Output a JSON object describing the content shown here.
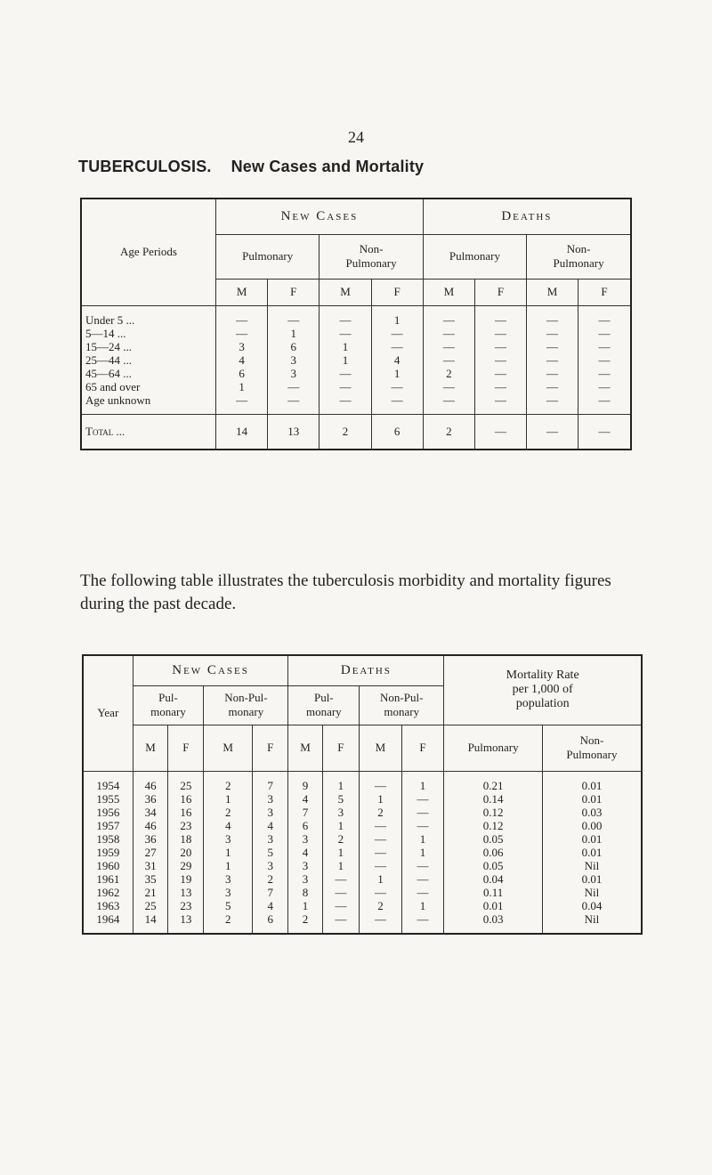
{
  "page_number": "24",
  "title": "TUBERCULOSIS.",
  "subtitle": "New Cases and Mortality",
  "table1": {
    "header": {
      "age_periods": "Age Periods",
      "new_cases": "New Cases",
      "deaths": "Deaths",
      "groups": [
        "Pulmonary",
        "Non-\nPulmonary",
        "Pulmonary",
        "Non-\nPulmonary"
      ],
      "sex": [
        "M",
        "F",
        "M",
        "F",
        "M",
        "F",
        "M",
        "F"
      ]
    },
    "rows": [
      [
        "Under 5 ...",
        "—",
        "—",
        "—",
        "1",
        "—",
        "—",
        "—",
        "—"
      ],
      [
        "5—14 ...",
        "—",
        "1",
        "—",
        "—",
        "—",
        "—",
        "—",
        "—"
      ],
      [
        "15—24 ...",
        "3",
        "6",
        "1",
        "—",
        "—",
        "—",
        "—",
        "—"
      ],
      [
        "25—44 ...",
        "4",
        "3",
        "1",
        "4",
        "—",
        "—",
        "—",
        "—"
      ],
      [
        "45—64 ...",
        "6",
        "3",
        "—",
        "1",
        "2",
        "—",
        "—",
        "—"
      ],
      [
        "65 and over",
        "1",
        "—",
        "—",
        "—",
        "—",
        "—",
        "—",
        "—"
      ],
      [
        "Age unknown",
        "—",
        "—",
        "—",
        "—",
        "—",
        "—",
        "—",
        "—"
      ]
    ],
    "total": [
      "Total ...",
      "14",
      "13",
      "2",
      "6",
      "2",
      "—",
      "—",
      "—"
    ]
  },
  "paragraph": "The following table illustrates the tuberculosis morbidity and mortality figures during the past decade.",
  "table2": {
    "header": {
      "year": "Year",
      "new_cases": "New Cases",
      "deaths": "Deaths",
      "mortality_rate": "Mortality Rate\nper 1,000 of\npopulation",
      "groups": [
        "Pul-\nmonary",
        "Non-Pul-\nmonary",
        "Pul-\nmonary",
        "Non-Pul-\nmonary"
      ],
      "sex": [
        "M",
        "F",
        "M",
        "F",
        "M",
        "F",
        "M",
        "F"
      ],
      "rate_cols": [
        "Pulmonary",
        "Non-\nPulmonary"
      ]
    },
    "rows": [
      [
        "1954",
        "46",
        "25",
        "2",
        "7",
        "9",
        "1",
        "—",
        "1",
        "0.21",
        "0.01"
      ],
      [
        "1955",
        "36",
        "16",
        "1",
        "3",
        "4",
        "5",
        "1",
        "—",
        "0.14",
        "0.01"
      ],
      [
        "1956",
        "34",
        "16",
        "2",
        "3",
        "7",
        "3",
        "2",
        "—",
        "0.12",
        "0.03"
      ],
      [
        "1957",
        "46",
        "23",
        "4",
        "4",
        "6",
        "1",
        "—",
        "—",
        "0.12",
        "0.00"
      ],
      [
        "1958",
        "36",
        "18",
        "3",
        "3",
        "3",
        "2",
        "—",
        "1",
        "0.05",
        "0.01"
      ],
      [
        "1959",
        "27",
        "20",
        "1",
        "5",
        "4",
        "1",
        "—",
        "1",
        "0.06",
        "0.01"
      ],
      [
        "1960",
        "31",
        "29",
        "1",
        "3",
        "3",
        "1",
        "—",
        "—",
        "0.05",
        "Nil"
      ],
      [
        "1961",
        "35",
        "19",
        "3",
        "2",
        "3",
        "—",
        "1",
        "—",
        "0.04",
        "0.01"
      ],
      [
        "1962",
        "21",
        "13",
        "3",
        "7",
        "8",
        "—",
        "—",
        "—",
        "0.11",
        "Nil"
      ],
      [
        "1963",
        "25",
        "23",
        "5",
        "4",
        "1",
        "—",
        "2",
        "1",
        "0.01",
        "0.04"
      ],
      [
        "1964",
        "14",
        "13",
        "2",
        "6",
        "2",
        "—",
        "—",
        "—",
        "0.03",
        "Nil"
      ]
    ]
  }
}
